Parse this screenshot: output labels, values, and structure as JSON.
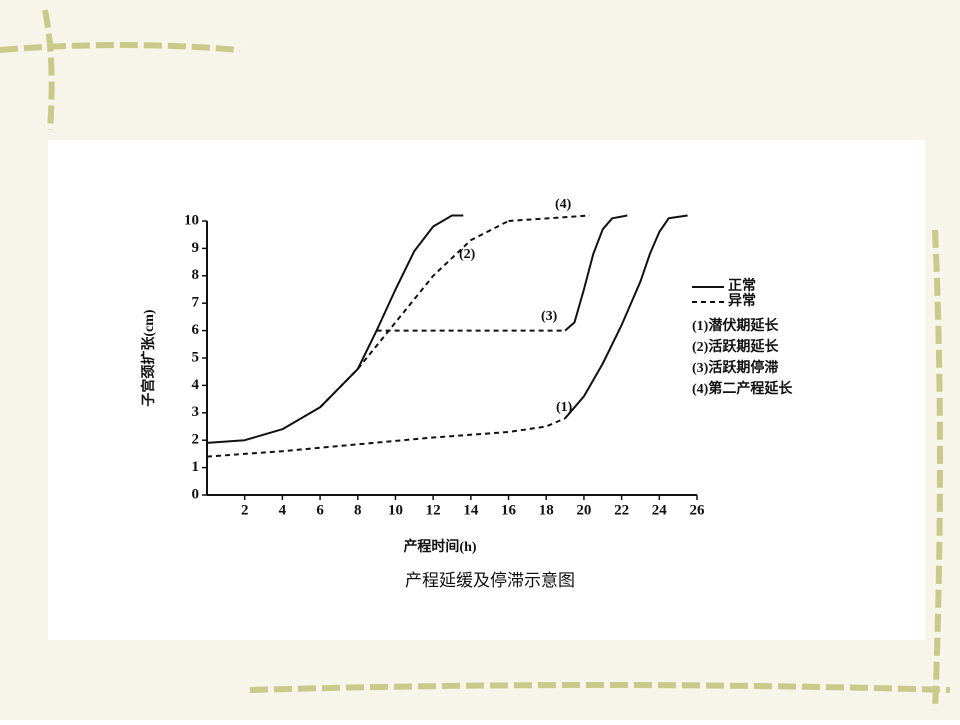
{
  "chart_data": {
    "type": "line",
    "title": "产程延缓及停滞示意图",
    "xlabel": "产程时间(h)",
    "ylabel": "子宫颈扩张(cm)",
    "xlim": [
      0,
      26
    ],
    "ylim": [
      0,
      10
    ],
    "xticks": [
      2,
      4,
      6,
      8,
      10,
      12,
      14,
      16,
      18,
      20,
      22,
      24,
      26
    ],
    "yticks": [
      0,
      1,
      2,
      3,
      4,
      5,
      6,
      7,
      8,
      9,
      10
    ],
    "legend": [
      {
        "label": "正常",
        "style": "solid"
      },
      {
        "label": "异常",
        "style": "dashed"
      }
    ],
    "notes": [
      "(1)潜伏期延长",
      "(2)活跃期延长",
      "(3)活跃期停滞",
      "(4)第二产程延长"
    ],
    "annotations": [
      "(1)",
      "(2)",
      "(3)",
      "(4)"
    ],
    "series": [
      {
        "color": "#111111",
        "style": "solid",
        "x": [
          0,
          2,
          4,
          6,
          8,
          9,
          10,
          11,
          12,
          13,
          13.6
        ],
        "values": [
          1.9,
          2.0,
          2.4,
          3.2,
          4.6,
          6.0,
          7.5,
          8.9,
          9.8,
          10.2,
          10.2
        ]
      },
      {
        "color": "#111111",
        "style": "dashed",
        "x": [
          0,
          4,
          8,
          12,
          16,
          18,
          19
        ],
        "values": [
          1.4,
          1.6,
          1.85,
          2.1,
          2.3,
          2.5,
          2.8
        ]
      },
      {
        "color": "#111111",
        "style": "solid",
        "x": [
          19,
          20,
          21,
          22,
          23,
          23.5,
          24,
          24.5,
          25.5
        ],
        "values": [
          2.8,
          3.6,
          4.8,
          6.2,
          7.8,
          8.8,
          9.6,
          10.1,
          10.2
        ]
      },
      {
        "color": "#111111",
        "style": "dashed",
        "x": [
          6,
          8,
          10,
          12,
          14,
          16
        ],
        "values": [
          3.2,
          4.6,
          6.3,
          8.0,
          9.3,
          10.0
        ]
      },
      {
        "color": "#111111",
        "style": "dashed",
        "x": [
          16,
          20.3
        ],
        "values": [
          10.0,
          10.2
        ]
      },
      {
        "color": "#111111",
        "style": "dashed",
        "x": [
          9,
          19
        ],
        "values": [
          6,
          6
        ]
      },
      {
        "color": "#111111",
        "style": "solid",
        "x": [
          19,
          19.5,
          20,
          20.5,
          21,
          21.5,
          22.3
        ],
        "values": [
          6,
          6.3,
          7.5,
          8.8,
          9.7,
          10.1,
          10.2
        ]
      }
    ]
  }
}
